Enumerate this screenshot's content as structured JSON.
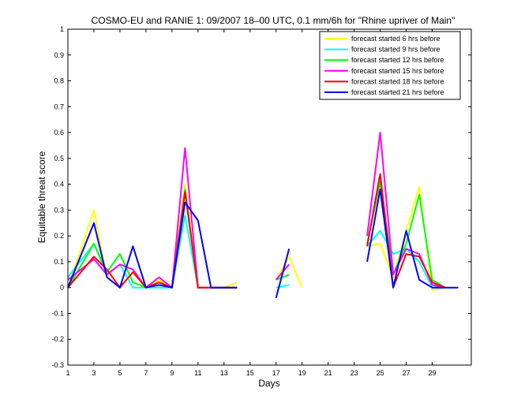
{
  "chart_data": {
    "type": "line",
    "title": "COSMO-EU and RANIE 1: 09/2007 18–00 UTC, 0.1 mm/6h for \"Rhine upriver of Main\"",
    "xlabel": "Days",
    "ylabel": "Equitable threat score",
    "xlim": [
      1,
      32
    ],
    "ylim": [
      -0.3,
      1
    ],
    "xticks": [
      "1",
      "3",
      "5",
      "7",
      "9",
      "11",
      "13",
      "15",
      "17",
      "19",
      "21",
      "23",
      "25",
      "27",
      "29"
    ],
    "yticks": [
      "-0.3",
      "-0.2",
      "-0.1",
      "0",
      "0.1",
      "0.2",
      "0.3",
      "0.4",
      "0.5",
      "0.6",
      "0.7",
      "0.8",
      "0.9",
      "1"
    ],
    "grid": false,
    "legend_position": "top-right",
    "series": [
      {
        "name": "forecast started 6 hrs before",
        "color": "#ffff00",
        "points": [
          [
            1,
            0.0
          ],
          [
            3,
            0.3
          ],
          [
            4,
            0.04
          ],
          [
            5,
            0.0
          ],
          [
            6,
            0.06
          ],
          [
            7,
            0.0
          ],
          [
            8,
            0.03
          ],
          [
            9,
            0.0
          ],
          [
            10,
            0.4
          ],
          [
            11,
            0.0
          ],
          [
            12,
            0.0
          ],
          [
            13,
            0.0
          ],
          [
            14,
            0.02
          ],
          null,
          [
            17,
            0.03
          ],
          [
            18,
            0.12
          ],
          [
            19,
            0.0
          ],
          null,
          [
            24,
            0.16
          ],
          [
            25,
            0.17
          ],
          [
            26,
            0.04
          ],
          [
            27,
            0.22
          ],
          [
            28,
            0.39
          ],
          [
            29,
            -0.01
          ],
          [
            30,
            0.0
          ]
        ]
      },
      {
        "name": "forecast started 9 hrs before",
        "color": "#00ffff",
        "points": [
          [
            1,
            0.04
          ],
          [
            3,
            0.17
          ],
          [
            4,
            0.05
          ],
          [
            5,
            0.09
          ],
          [
            6,
            0.0
          ],
          [
            7,
            0.0
          ],
          [
            8,
            0.0
          ],
          [
            9,
            0.0
          ],
          [
            10,
            0.28
          ],
          [
            11,
            0.0
          ],
          [
            12,
            0.0
          ],
          [
            13,
            0.0
          ],
          [
            14,
            0.0
          ],
          null,
          [
            17,
            0.0
          ],
          [
            18,
            0.01
          ],
          null,
          [
            24,
            0.16
          ],
          [
            25,
            0.22
          ],
          [
            26,
            0.13
          ],
          [
            27,
            0.15
          ],
          [
            28,
            0.1
          ],
          [
            29,
            0.0
          ],
          [
            30,
            0.0
          ]
        ]
      },
      {
        "name": "forecast started 12 hrs before",
        "color": "#00ff00",
        "points": [
          [
            1,
            0.0
          ],
          [
            3,
            0.17
          ],
          [
            4,
            0.06
          ],
          [
            5,
            0.13
          ],
          [
            6,
            0.02
          ],
          [
            7,
            0.0
          ],
          [
            8,
            0.02
          ],
          [
            9,
            0.0
          ],
          [
            10,
            0.38
          ],
          [
            11,
            0.0
          ],
          [
            12,
            0.0
          ],
          [
            13,
            0.0
          ],
          [
            14,
            0.0
          ],
          null,
          [
            17,
            0.03
          ],
          [
            18,
            0.05
          ],
          null,
          [
            24,
            0.17
          ],
          [
            25,
            0.41
          ],
          [
            26,
            0.05
          ],
          [
            27,
            0.17
          ],
          [
            28,
            0.36
          ],
          [
            29,
            0.03
          ],
          [
            30,
            0.0
          ]
        ]
      },
      {
        "name": "forecast started 15 hrs before",
        "color": "#ff00ff",
        "points": [
          [
            1,
            0.03
          ],
          [
            3,
            0.11
          ],
          [
            4,
            0.05
          ],
          [
            5,
            0.09
          ],
          [
            6,
            0.07
          ],
          [
            7,
            0.0
          ],
          [
            8,
            0.04
          ],
          [
            9,
            0.0
          ],
          [
            10,
            0.54
          ],
          [
            11,
            0.0
          ],
          [
            12,
            0.0
          ],
          [
            13,
            0.0
          ],
          [
            14,
            0.0
          ],
          null,
          [
            17,
            0.03
          ],
          [
            18,
            0.09
          ],
          null,
          [
            24,
            0.2
          ],
          [
            25,
            0.6
          ],
          [
            26,
            0.05
          ],
          [
            27,
            0.15
          ],
          [
            28,
            0.13
          ],
          [
            29,
            0.01
          ],
          [
            30,
            0.0
          ]
        ]
      },
      {
        "name": "forecast started 18 hrs before",
        "color": "#ff0000",
        "points": [
          [
            1,
            0.0
          ],
          [
            3,
            0.12
          ],
          [
            4,
            0.07
          ],
          [
            5,
            0.0
          ],
          [
            6,
            0.06
          ],
          [
            7,
            0.0
          ],
          [
            8,
            0.02
          ],
          [
            9,
            0.0
          ],
          [
            10,
            0.37
          ],
          [
            11,
            0.0
          ],
          [
            12,
            0.0
          ],
          [
            13,
            0.0
          ],
          [
            14,
            0.0
          ],
          null,
          [
            24,
            0.16
          ],
          [
            25,
            0.44
          ],
          [
            26,
            0.0
          ],
          [
            27,
            0.13
          ],
          [
            28,
            0.12
          ],
          [
            29,
            0.02
          ],
          [
            30,
            0.0
          ]
        ]
      },
      {
        "name": "forecast started 21 hrs before",
        "color": "#0000ff",
        "points": [
          [
            1,
            0.0
          ],
          [
            3,
            0.25
          ],
          [
            4,
            0.04
          ],
          [
            5,
            0.0
          ],
          [
            6,
            0.16
          ],
          [
            7,
            0.0
          ],
          [
            8,
            0.01
          ],
          [
            9,
            0.0
          ],
          [
            10,
            0.33
          ],
          [
            11,
            0.26
          ],
          [
            12,
            0.0
          ],
          [
            13,
            0.0
          ],
          [
            14,
            0.0
          ],
          null,
          [
            17,
            -0.04
          ],
          [
            18,
            0.15
          ],
          null,
          [
            24,
            0.1
          ],
          [
            25,
            0.38
          ],
          [
            26,
            0.0
          ],
          [
            27,
            0.22
          ],
          [
            28,
            0.03
          ],
          [
            29,
            0.0
          ],
          [
            30,
            0.0
          ],
          [
            31,
            0.0
          ]
        ]
      }
    ]
  }
}
